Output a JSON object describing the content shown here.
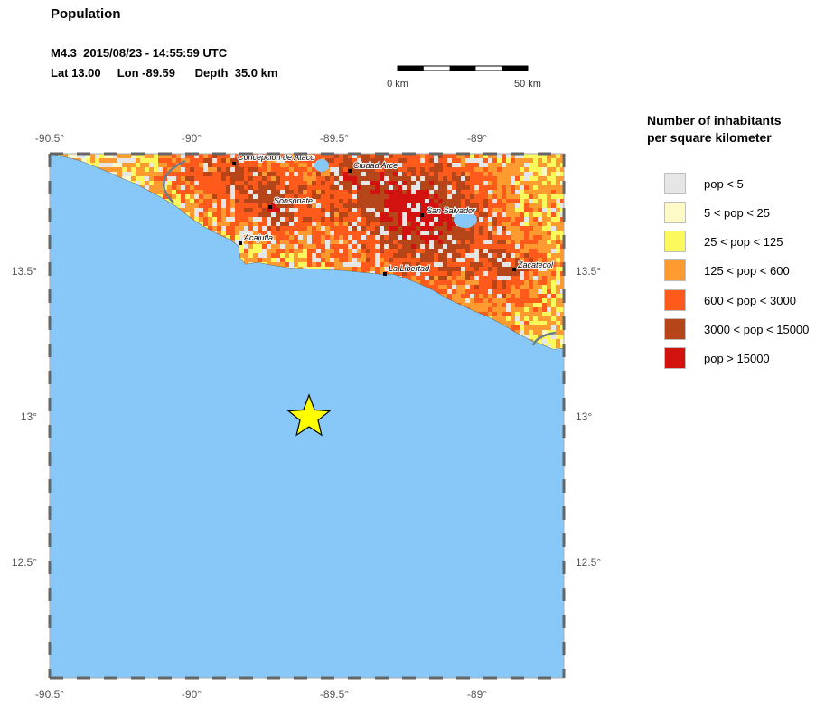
{
  "header": {
    "title": "Population",
    "event_line1": "M4.3  2015/08/23 - 14:55:59 UTC",
    "event_line2": "Lat 13.00     Lon -89.59      Depth  35.0 km"
  },
  "scale_bar": {
    "start_label": "0 km",
    "end_label": "50 km"
  },
  "axes": {
    "lon_labels": [
      "-90.5°",
      "-90°",
      "-89.5°",
      "-89°"
    ],
    "lat_labels": [
      "13.5°",
      "13°",
      "12.5°"
    ]
  },
  "cities": [
    {
      "name": "Concepcion de Ataco"
    },
    {
      "name": "Ciudad Arce"
    },
    {
      "name": "Sonsonate"
    },
    {
      "name": "San Salvador"
    },
    {
      "name": "Acajutla"
    },
    {
      "name": "La Libertad"
    },
    {
      "name": "Zacatecol"
    }
  ],
  "epicenter": {
    "lat": 13.0,
    "lon": -89.59,
    "marker": "star-icon",
    "color": "#ffff00"
  },
  "colors": {
    "ocean": "#87c8f9",
    "land_low": "#e6e6e6"
  },
  "legend": {
    "title": "Number of inhabitants\nper square kilometer",
    "items": [
      {
        "label": "pop < 5",
        "color": "#e6e6e6"
      },
      {
        "label": "5 < pop < 25",
        "color": "#fdfac8"
      },
      {
        "label": "25 < pop < 125",
        "color": "#fbf95c"
      },
      {
        "label": "125 < pop < 600",
        "color": "#fd9a30"
      },
      {
        "label": "600 < pop < 3000",
        "color": "#fd5a1b"
      },
      {
        "label": "3000 < pop < 15000",
        "color": "#b6451a"
      },
      {
        "label": "pop > 15000",
        "color": "#d2120f"
      }
    ]
  }
}
